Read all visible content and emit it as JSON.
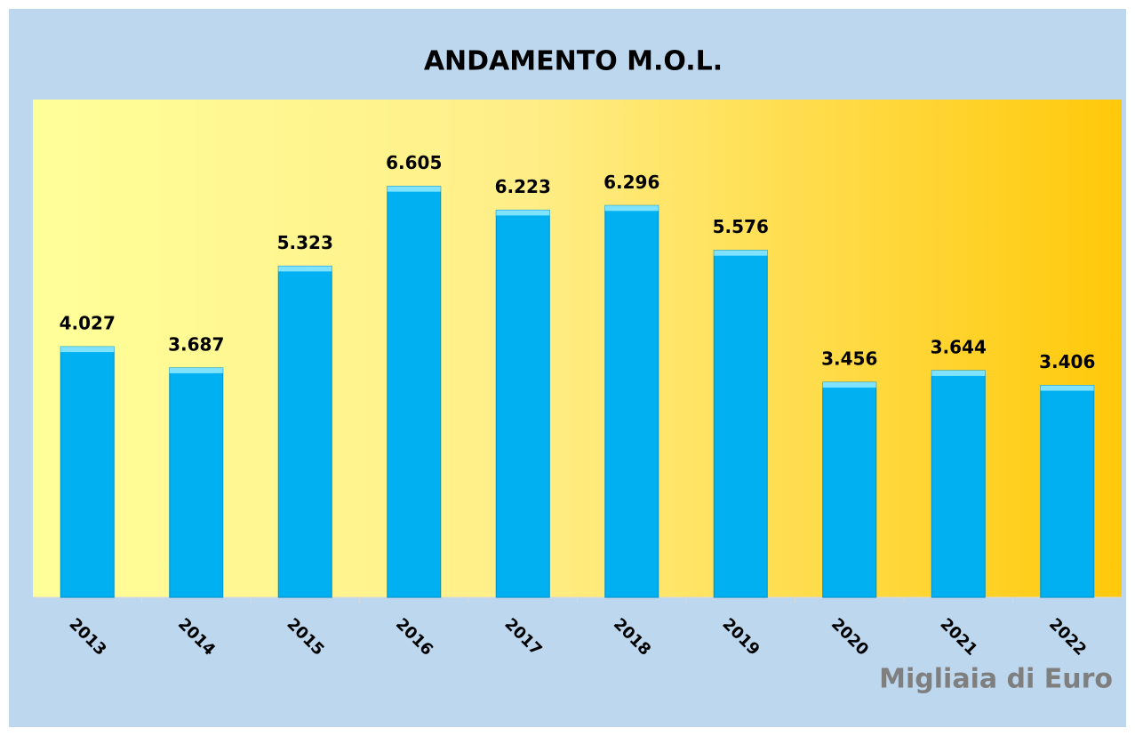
{
  "chart_data": {
    "type": "bar",
    "title": "ANDAMENTO M.O.L.",
    "unit_label": "Migliaia di Euro",
    "categories": [
      "2013",
      "2014",
      "2015",
      "2016",
      "2017",
      "2018",
      "2019",
      "2020",
      "2021",
      "2022"
    ],
    "values": [
      4027,
      3687,
      5323,
      6605,
      6223,
      6296,
      5576,
      3456,
      3644,
      3406
    ],
    "value_labels": [
      "4.027",
      "3.687",
      "5.323",
      "6.605",
      "6.223",
      "6.296",
      "5.576",
      "3.456",
      "3.644",
      "3.406"
    ],
    "color": "#00b0f0",
    "ylim": [
      0,
      8000
    ]
  }
}
